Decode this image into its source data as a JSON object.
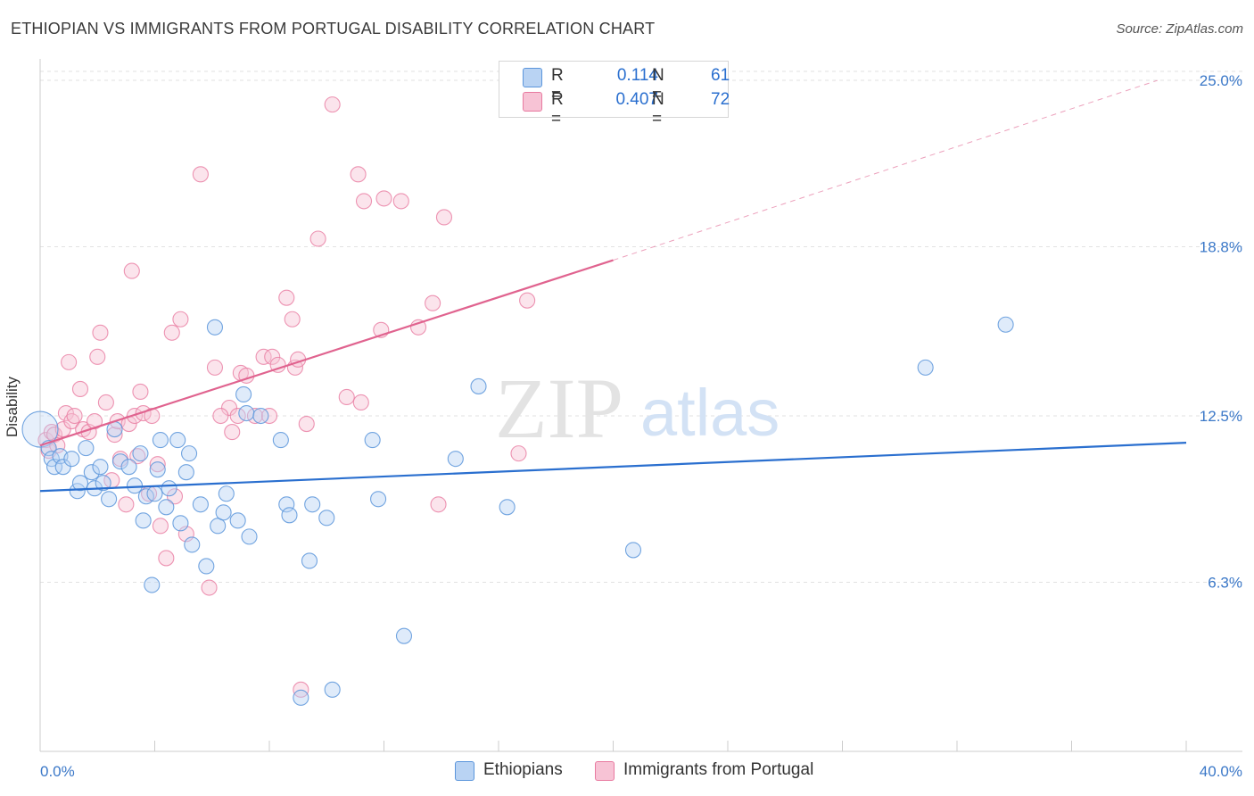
{
  "header": {
    "title": "ETHIOPIAN VS IMMIGRANTS FROM PORTUGAL DISABILITY CORRELATION CHART",
    "source": "Source: ZipAtlas.com"
  },
  "watermark": {
    "zip": "ZIP",
    "atlas": "atlas"
  },
  "colors": {
    "blue": "#5b95db",
    "blue_fill": "#b9d3f3",
    "blue_line": "#2a6fcf",
    "pink": "#e87aa0",
    "pink_fill": "#f7c3d5",
    "pink_line": "#e0638f",
    "axis_text": "#3b78c8"
  },
  "legend": {
    "rows": [
      {
        "r_label": "R =",
        "r_value": "0.114",
        "n_label": "N =",
        "n_value": "61"
      },
      {
        "r_label": "R =",
        "r_value": "0.407",
        "n_label": "N =",
        "n_value": "72"
      }
    ]
  },
  "bottom_legend": {
    "series1": "Ethiopians",
    "series2": "Immigrants from Portugal"
  },
  "chart_data": {
    "type": "scatter",
    "title": "ETHIOPIAN VS IMMIGRANTS FROM PORTUGAL DISABILITY CORRELATION CHART",
    "xlabel": "",
    "ylabel": "Disability",
    "xlim": [
      0,
      40
    ],
    "ylim": [
      0,
      25.6
    ],
    "x_ticks_labels": [
      "0.0%",
      "40.0%"
    ],
    "y_ticks": [
      6.3,
      12.5,
      18.8,
      25.0
    ],
    "y_tick_labels": [
      "6.3%",
      "12.5%",
      "18.8%",
      "25.0%"
    ],
    "grid": true,
    "series": [
      {
        "name": "Ethiopians",
        "r": 0.114,
        "n": 61,
        "trend": {
          "x": [
            0,
            40
          ],
          "y": [
            9.7,
            11.5
          ]
        },
        "points": [
          [
            0.0,
            12.0
          ],
          [
            0.3,
            11.3
          ],
          [
            0.4,
            10.9
          ],
          [
            0.5,
            10.6
          ],
          [
            0.7,
            11.0
          ],
          [
            0.8,
            10.6
          ],
          [
            1.1,
            10.9
          ],
          [
            1.3,
            9.7
          ],
          [
            1.4,
            10.0
          ],
          [
            1.6,
            11.3
          ],
          [
            1.8,
            10.4
          ],
          [
            1.9,
            9.8
          ],
          [
            2.1,
            10.6
          ],
          [
            2.2,
            10.0
          ],
          [
            2.4,
            9.4
          ],
          [
            2.6,
            12.0
          ],
          [
            2.8,
            10.8
          ],
          [
            3.1,
            10.6
          ],
          [
            3.3,
            9.9
          ],
          [
            3.5,
            11.1
          ],
          [
            3.6,
            8.6
          ],
          [
            3.7,
            9.5
          ],
          [
            3.9,
            6.2
          ],
          [
            4.1,
            10.5
          ],
          [
            4.2,
            11.6
          ],
          [
            4.4,
            9.1
          ],
          [
            4.5,
            9.8
          ],
          [
            4.8,
            11.6
          ],
          [
            4.9,
            8.5
          ],
          [
            5.1,
            10.4
          ],
          [
            5.2,
            11.1
          ],
          [
            5.3,
            7.7
          ],
          [
            5.6,
            9.2
          ],
          [
            5.8,
            6.9
          ],
          [
            6.1,
            15.8
          ],
          [
            6.2,
            8.4
          ],
          [
            6.4,
            8.9
          ],
          [
            6.5,
            9.6
          ],
          [
            6.9,
            8.6
          ],
          [
            7.1,
            13.3
          ],
          [
            7.2,
            12.6
          ],
          [
            7.7,
            12.5
          ],
          [
            8.4,
            11.6
          ],
          [
            8.6,
            9.2
          ],
          [
            8.7,
            8.8
          ],
          [
            9.1,
            2.0
          ],
          [
            9.4,
            7.1
          ],
          [
            9.5,
            9.2
          ],
          [
            10.0,
            8.7
          ],
          [
            10.2,
            2.3
          ],
          [
            11.6,
            11.6
          ],
          [
            11.8,
            9.4
          ],
          [
            12.7,
            4.3
          ],
          [
            14.5,
            10.9
          ],
          [
            15.3,
            13.6
          ],
          [
            16.3,
            9.1
          ],
          [
            20.7,
            7.5
          ],
          [
            30.9,
            14.3
          ],
          [
            33.7,
            15.9
          ],
          [
            7.3,
            8.0
          ],
          [
            4.0,
            9.6
          ]
        ]
      },
      {
        "name": "Immigrants from Portugal",
        "r": 0.407,
        "n": 72,
        "trend": {
          "x": [
            0,
            20
          ],
          "y": [
            11.4,
            18.3
          ]
        },
        "trend_extension": {
          "x": [
            20,
            39
          ],
          "y": [
            18.3,
            25.0
          ]
        },
        "points": [
          [
            0.2,
            11.6
          ],
          [
            0.3,
            11.2
          ],
          [
            0.4,
            11.9
          ],
          [
            0.5,
            11.8
          ],
          [
            0.6,
            11.4
          ],
          [
            0.8,
            12.0
          ],
          [
            0.9,
            12.6
          ],
          [
            1.0,
            14.5
          ],
          [
            1.1,
            12.3
          ],
          [
            1.2,
            12.5
          ],
          [
            1.4,
            13.5
          ],
          [
            1.5,
            12.0
          ],
          [
            1.7,
            11.9
          ],
          [
            1.9,
            12.3
          ],
          [
            2.0,
            14.7
          ],
          [
            2.1,
            15.6
          ],
          [
            2.3,
            13.0
          ],
          [
            2.5,
            10.1
          ],
          [
            2.6,
            11.8
          ],
          [
            2.7,
            12.3
          ],
          [
            2.8,
            10.9
          ],
          [
            3.0,
            9.2
          ],
          [
            3.1,
            12.2
          ],
          [
            3.2,
            17.9
          ],
          [
            3.3,
            12.5
          ],
          [
            3.4,
            11.0
          ],
          [
            3.5,
            13.4
          ],
          [
            3.6,
            12.6
          ],
          [
            3.8,
            9.6
          ],
          [
            3.9,
            12.5
          ],
          [
            4.1,
            10.7
          ],
          [
            4.2,
            8.4
          ],
          [
            4.4,
            7.2
          ],
          [
            4.6,
            15.6
          ],
          [
            4.7,
            9.5
          ],
          [
            4.9,
            16.1
          ],
          [
            5.1,
            8.1
          ],
          [
            5.6,
            21.5
          ],
          [
            5.9,
            6.1
          ],
          [
            6.1,
            14.3
          ],
          [
            6.6,
            12.8
          ],
          [
            6.7,
            11.9
          ],
          [
            6.9,
            12.5
          ],
          [
            7.0,
            14.1
          ],
          [
            7.2,
            14.0
          ],
          [
            7.5,
            12.5
          ],
          [
            7.8,
            14.7
          ],
          [
            8.0,
            12.5
          ],
          [
            8.1,
            14.7
          ],
          [
            8.3,
            14.4
          ],
          [
            8.6,
            16.9
          ],
          [
            8.8,
            16.1
          ],
          [
            8.9,
            14.3
          ],
          [
            9.1,
            2.3
          ],
          [
            9.3,
            12.2
          ],
          [
            9.7,
            19.1
          ],
          [
            10.2,
            24.1
          ],
          [
            10.7,
            13.2
          ],
          [
            11.1,
            21.5
          ],
          [
            11.2,
            13.0
          ],
          [
            11.3,
            20.5
          ],
          [
            11.9,
            15.7
          ],
          [
            12.0,
            20.6
          ],
          [
            12.6,
            20.5
          ],
          [
            13.2,
            15.8
          ],
          [
            13.7,
            16.7
          ],
          [
            13.9,
            9.2
          ],
          [
            14.1,
            19.9
          ],
          [
            16.7,
            11.1
          ],
          [
            17.0,
            16.8
          ],
          [
            6.3,
            12.5
          ],
          [
            9.0,
            14.6
          ]
        ]
      }
    ]
  }
}
